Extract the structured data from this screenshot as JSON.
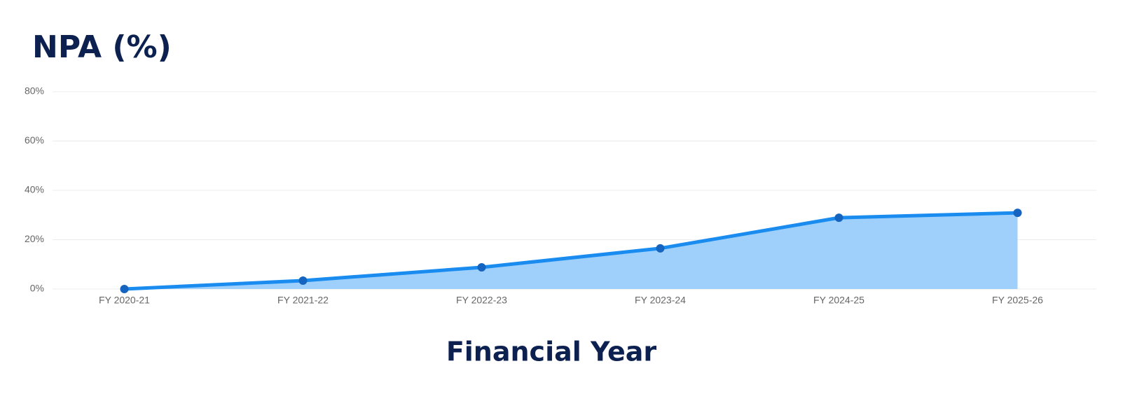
{
  "chart_data": {
    "type": "area",
    "title": "NPA (%)",
    "x_label": "Financial Year",
    "categories": [
      "FY 2020-21",
      "FY 2021-22",
      "FY 2022-23",
      "FY 2023-24",
      "FY 2024-25",
      "FY 2025-26"
    ],
    "series": [
      {
        "name": "NPA",
        "color": "#1a8cf0",
        "fill": "#9fd0fc",
        "marker_color": "#1565c0",
        "values": [
          0,
          3.4,
          8.8,
          16.5,
          28.9,
          30.9
        ]
      }
    ],
    "ylim": [
      0,
      80
    ],
    "yticks": [
      {
        "value": 0,
        "label": "0%"
      },
      {
        "value": 20,
        "label": "20%"
      },
      {
        "value": 40,
        "label": "40%"
      },
      {
        "value": 60,
        "label": "60%"
      },
      {
        "value": 80,
        "label": "80%"
      }
    ],
    "grid": true
  }
}
